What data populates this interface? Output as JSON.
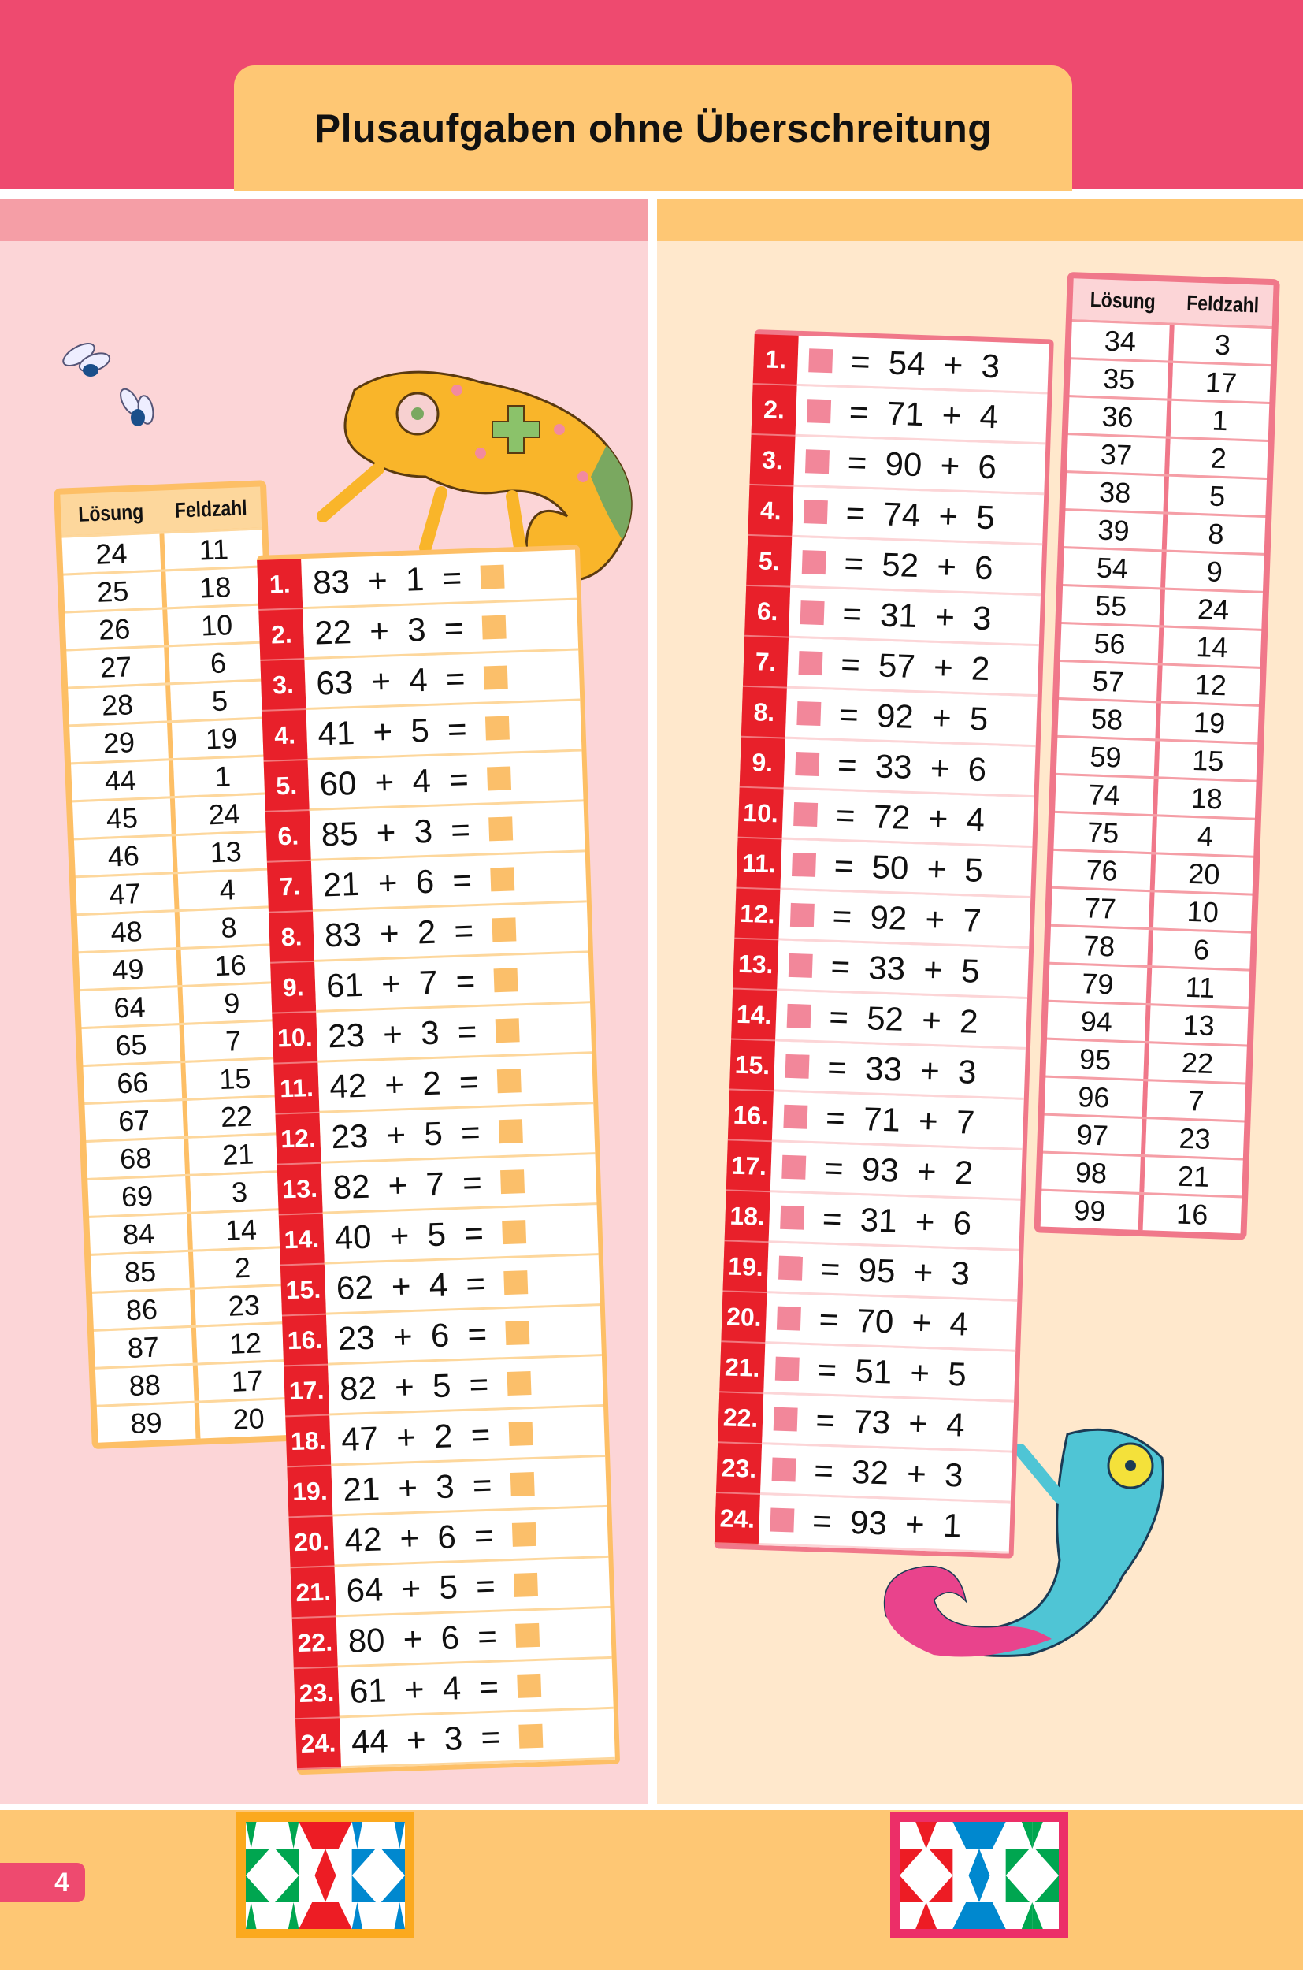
{
  "title": "Plusaufgaben ohne Überschreitung",
  "page_number": "4",
  "colors": {
    "banner": "#ee4a6f",
    "title_tab": "#fec774",
    "left_panel": "#fcd5d7",
    "right_panel": "#ffe8cc",
    "number_cell": "#e8202a",
    "left_answer_box": "#fbbf6a",
    "right_answer_box": "#f2879a"
  },
  "left": {
    "table": {
      "headers": [
        "Lösung",
        "Feldzahl"
      ],
      "rows": [
        [
          "24",
          "11"
        ],
        [
          "25",
          "18"
        ],
        [
          "26",
          "10"
        ],
        [
          "27",
          "6"
        ],
        [
          "28",
          "5"
        ],
        [
          "29",
          "19"
        ],
        [
          "44",
          "1"
        ],
        [
          "45",
          "24"
        ],
        [
          "46",
          "13"
        ],
        [
          "47",
          "4"
        ],
        [
          "48",
          "8"
        ],
        [
          "49",
          "16"
        ],
        [
          "64",
          "9"
        ],
        [
          "65",
          "7"
        ],
        [
          "66",
          "15"
        ],
        [
          "67",
          "22"
        ],
        [
          "68",
          "21"
        ],
        [
          "69",
          "3"
        ],
        [
          "84",
          "14"
        ],
        [
          "85",
          "2"
        ],
        [
          "86",
          "23"
        ],
        [
          "87",
          "12"
        ],
        [
          "88",
          "17"
        ],
        [
          "89",
          "20"
        ]
      ]
    },
    "tasks": [
      {
        "n": "1.",
        "expr": "83  +  1  ="
      },
      {
        "n": "2.",
        "expr": "22  +  3  ="
      },
      {
        "n": "3.",
        "expr": "63  +  4  ="
      },
      {
        "n": "4.",
        "expr": "41  +  5  ="
      },
      {
        "n": "5.",
        "expr": "60  +  4  ="
      },
      {
        "n": "6.",
        "expr": "85  +  3  ="
      },
      {
        "n": "7.",
        "expr": "21  +  6  ="
      },
      {
        "n": "8.",
        "expr": "83  +  2  ="
      },
      {
        "n": "9.",
        "expr": "61  +  7  ="
      },
      {
        "n": "10.",
        "expr": "23  +  3  ="
      },
      {
        "n": "11.",
        "expr": "42  +  2  ="
      },
      {
        "n": "12.",
        "expr": "23  +  5  ="
      },
      {
        "n": "13.",
        "expr": "82  +  7  ="
      },
      {
        "n": "14.",
        "expr": "40  +  5  ="
      },
      {
        "n": "15.",
        "expr": "62  +  4  ="
      },
      {
        "n": "16.",
        "expr": "23  +  6  ="
      },
      {
        "n": "17.",
        "expr": "82  +  5  ="
      },
      {
        "n": "18.",
        "expr": "47  +  2  ="
      },
      {
        "n": "19.",
        "expr": "21  +  3  ="
      },
      {
        "n": "20.",
        "expr": "42  +  6  ="
      },
      {
        "n": "21.",
        "expr": "64  +  5  ="
      },
      {
        "n": "22.",
        "expr": "80  +  6  ="
      },
      {
        "n": "23.",
        "expr": "61  +  4  ="
      },
      {
        "n": "24.",
        "expr": "44  +  3  ="
      }
    ]
  },
  "right": {
    "table": {
      "headers": [
        "Lösung",
        "Feldzahl"
      ],
      "rows": [
        [
          "34",
          "3"
        ],
        [
          "35",
          "17"
        ],
        [
          "36",
          "1"
        ],
        [
          "37",
          "2"
        ],
        [
          "38",
          "5"
        ],
        [
          "39",
          "8"
        ],
        [
          "54",
          "9"
        ],
        [
          "55",
          "24"
        ],
        [
          "56",
          "14"
        ],
        [
          "57",
          "12"
        ],
        [
          "58",
          "19"
        ],
        [
          "59",
          "15"
        ],
        [
          "74",
          "18"
        ],
        [
          "75",
          "4"
        ],
        [
          "76",
          "20"
        ],
        [
          "77",
          "10"
        ],
        [
          "78",
          "6"
        ],
        [
          "79",
          "11"
        ],
        [
          "94",
          "13"
        ],
        [
          "95",
          "22"
        ],
        [
          "96",
          "7"
        ],
        [
          "97",
          "23"
        ],
        [
          "98",
          "21"
        ],
        [
          "99",
          "16"
        ]
      ]
    },
    "tasks": [
      {
        "n": "1.",
        "expr": "  =  54  +  3"
      },
      {
        "n": "2.",
        "expr": "  =  71  +  4"
      },
      {
        "n": "3.",
        "expr": "  =  90  +  6"
      },
      {
        "n": "4.",
        "expr": "  =  74  +  5"
      },
      {
        "n": "5.",
        "expr": "  =  52  +  6"
      },
      {
        "n": "6.",
        "expr": "  =  31  +  3"
      },
      {
        "n": "7.",
        "expr": "  =  57  +  2"
      },
      {
        "n": "8.",
        "expr": "  =  92  +  5"
      },
      {
        "n": "9.",
        "expr": "  =  33  +  6"
      },
      {
        "n": "10.",
        "expr": "  =  72  +  4"
      },
      {
        "n": "11.",
        "expr": "  =  50  +  5"
      },
      {
        "n": "12.",
        "expr": "  =  92  +  7"
      },
      {
        "n": "13.",
        "expr": "  =  33  +  5"
      },
      {
        "n": "14.",
        "expr": "  =  52  +  2"
      },
      {
        "n": "15.",
        "expr": "  =  33  +  3"
      },
      {
        "n": "16.",
        "expr": "  =  71  +  7"
      },
      {
        "n": "17.",
        "expr": "  =  93  +  2"
      },
      {
        "n": "18.",
        "expr": "  =  31  +  6"
      },
      {
        "n": "19.",
        "expr": "  =  95  +  3"
      },
      {
        "n": "20.",
        "expr": "  =  70  +  4"
      },
      {
        "n": "21.",
        "expr": "  =  51  +  5"
      },
      {
        "n": "22.",
        "expr": "  =  73  +  4"
      },
      {
        "n": "23.",
        "expr": "  =  32  +  3"
      },
      {
        "n": "24.",
        "expr": "  =  93  +  1"
      }
    ]
  }
}
